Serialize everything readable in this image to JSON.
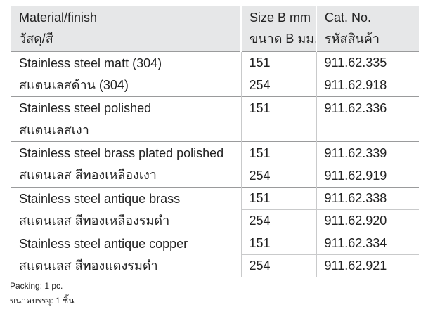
{
  "table": {
    "headers": [
      {
        "en": "Material/finish",
        "th": "วัสดุ/สี"
      },
      {
        "en": "Size B mm",
        "th": "ขนาด B มม."
      },
      {
        "en": "Cat. No.",
        "th": "รหัสสินค้า"
      }
    ],
    "rows": [
      {
        "material_en": "Stainless steel matt (304)",
        "material_th": "สแตนเลสด้าน (304)",
        "variants": [
          {
            "size": "151",
            "cat_no": "911.62.335"
          },
          {
            "size": "254",
            "cat_no": "911.62.918"
          }
        ]
      },
      {
        "material_en": "Stainless steel polished",
        "material_th": "สแตนเลสเงา",
        "variants": [
          {
            "size": "151",
            "cat_no": "911.62.336"
          }
        ]
      },
      {
        "material_en": "Stainless steel brass plated polished",
        "material_th": "สแตนเลส  สีทองเหลืองเงา",
        "variants": [
          {
            "size": "151",
            "cat_no": "911.62.339"
          },
          {
            "size": "254",
            "cat_no": "911.62.919"
          }
        ]
      },
      {
        "material_en": "Stainless steel antique brass",
        "material_th": "สแตนเลส  สีทองเหลืองรมดำ",
        "variants": [
          {
            "size": "151",
            "cat_no": "911.62.338"
          },
          {
            "size": "254",
            "cat_no": "911.62.920"
          }
        ]
      },
      {
        "material_en": "Stainless steel antique copper",
        "material_th": "สแตนเลส  สีทองแดงรมดำ",
        "variants": [
          {
            "size": "151",
            "cat_no": "911.62.334"
          },
          {
            "size": "254",
            "cat_no": "911.62.921"
          }
        ]
      }
    ]
  },
  "footer": {
    "packing_en": "Packing: 1 pc.",
    "packing_th": "ขนาดบรรจุ: 1 ชิ้น"
  }
}
